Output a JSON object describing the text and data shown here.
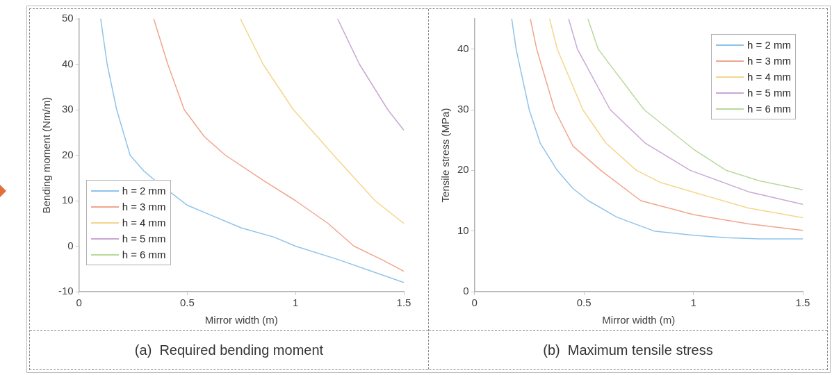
{
  "chart_data": [
    {
      "type": "line",
      "title": "(a)  Required bending moment",
      "xlabel": "Mirror width (m)",
      "ylabel": "Bending moment (Nm/m)",
      "xlim": [
        0,
        1.5
      ],
      "xticks": [
        0,
        0.5,
        1,
        1.5
      ],
      "ylim": [
        -10,
        50
      ],
      "yticks": [
        -10,
        0,
        10,
        20,
        30,
        40,
        50
      ],
      "grid": false,
      "legend": "bottom left",
      "series": [
        {
          "name": "h = 2 mm",
          "color": "#8ec3ea",
          "x": [
            0.1,
            0.13,
            0.174,
            0.236,
            0.3,
            0.35,
            0.5,
            0.6,
            0.75,
            0.9,
            1.0,
            1.2,
            1.35,
            1.5
          ],
          "values": [
            50,
            40,
            30,
            20,
            16.5,
            14.5,
            9,
            7,
            4,
            2,
            0,
            -3,
            -5.5,
            -8
          ]
        },
        {
          "name": "h = 3 mm",
          "color": "#f0a58c",
          "x": [
            0.345,
            0.41,
            0.486,
            0.58,
            0.676,
            0.85,
            1.0,
            1.15,
            1.27,
            1.4,
            1.5
          ],
          "values": [
            50,
            40,
            30,
            24,
            20,
            14.5,
            10,
            5,
            0,
            -3,
            -5.5
          ]
        },
        {
          "name": "h = 4 mm",
          "color": "#f5d58a",
          "x": [
            0.745,
            0.85,
            0.99,
            1.176,
            1.367,
            1.5
          ],
          "values": [
            50,
            40,
            30,
            20,
            10,
            5
          ]
        },
        {
          "name": "h = 5 mm",
          "color": "#c9a6d6",
          "x": [
            1.194,
            1.295,
            1.426,
            1.5
          ],
          "values": [
            50,
            40,
            30,
            25.5
          ]
        },
        {
          "name": "h = 6 mm",
          "color": "#b9d99a"
        }
      ]
    },
    {
      "type": "line",
      "title": "(b)  Maximum tensile stress",
      "xlabel": "Mirror width (m)",
      "ylabel": "Tensile stress (MPa)",
      "xlim": [
        0,
        1.5
      ],
      "xticks": [
        0,
        0.5,
        1,
        1.5
      ],
      "ylim": [
        0,
        45
      ],
      "yticks": [
        0,
        10,
        20,
        30,
        40
      ],
      "grid": false,
      "legend": "top right",
      "series": [
        {
          "name": "h = 2 mm",
          "color": "#8ec3ea",
          "x": [
            0.17,
            0.19,
            0.25,
            0.3,
            0.378,
            0.45,
            0.52,
            0.65,
            0.82,
            1.0,
            1.15,
            1.3,
            1.5
          ],
          "values": [
            45,
            40,
            30,
            24.5,
            20,
            17,
            15,
            12.3,
            10,
            9.3,
            8.9,
            8.7,
            8.7
          ]
        },
        {
          "name": "h = 3 mm",
          "color": "#f0a58c",
          "x": [
            0.255,
            0.284,
            0.366,
            0.45,
            0.577,
            0.76,
            1.0,
            1.25,
            1.5
          ],
          "values": [
            45,
            40,
            30,
            24,
            20,
            15,
            12.7,
            11.2,
            10.1
          ]
        },
        {
          "name": "h = 4 mm",
          "color": "#f5d58a",
          "x": [
            0.343,
            0.378,
            0.495,
            0.6,
            0.74,
            0.85,
            1.0,
            1.25,
            1.5
          ],
          "values": [
            45,
            40,
            30,
            24.5,
            20,
            18,
            16.4,
            13.8,
            12.2
          ]
        },
        {
          "name": "h = 5 mm",
          "color": "#c9a6d6",
          "x": [
            0.43,
            0.47,
            0.62,
            0.78,
            0.986,
            1.25,
            1.5
          ],
          "values": [
            45,
            40,
            30,
            24.5,
            20,
            16.5,
            14.4
          ]
        },
        {
          "name": "h = 6 mm",
          "color": "#b9d99a",
          "x": [
            0.518,
            0.565,
            0.775,
            1.0,
            1.15,
            1.3,
            1.5
          ],
          "values": [
            45,
            40,
            30,
            23.5,
            20,
            18.3,
            16.8
          ]
        }
      ]
    }
  ]
}
